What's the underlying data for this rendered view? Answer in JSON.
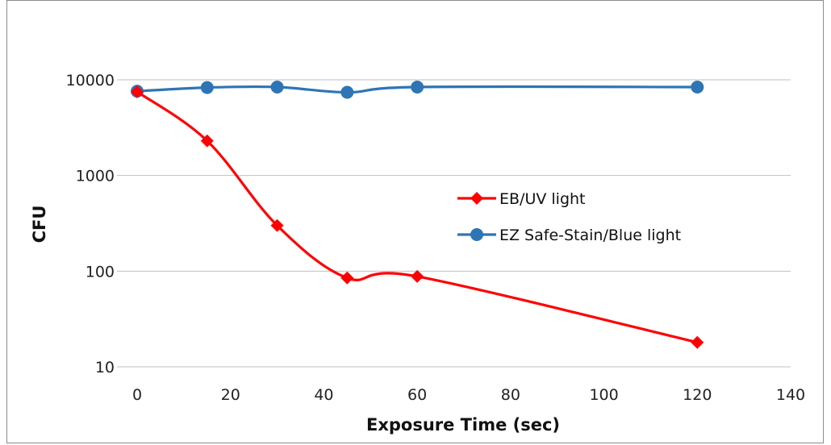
{
  "chart_data": {
    "type": "line",
    "xlabel": "Exposure Time (sec)",
    "ylabel": "CFU",
    "xlim": [
      0,
      140
    ],
    "ylim": [
      10,
      10000
    ],
    "yscale": "log",
    "xticks": [
      "0",
      "20",
      "40",
      "60",
      "80",
      "100",
      "120",
      "140"
    ],
    "yticks": [
      "10",
      "100",
      "1000",
      "10000"
    ],
    "grid": "horizontal",
    "legend_position": "center-right",
    "series": [
      {
        "name": "EB/UV light",
        "color": "#ff0000",
        "marker": "diamond",
        "x": [
          0,
          15,
          30,
          45,
          60,
          120
        ],
        "y": [
          7500,
          2300,
          300,
          85,
          88,
          18
        ]
      },
      {
        "name": "EZ Safe-Stain/Blue light",
        "color": "#2e75b6",
        "marker": "circle",
        "x": [
          0,
          15,
          30,
          45,
          60,
          120
        ],
        "y": [
          7600,
          8300,
          8400,
          7400,
          8400,
          8400
        ]
      }
    ]
  }
}
